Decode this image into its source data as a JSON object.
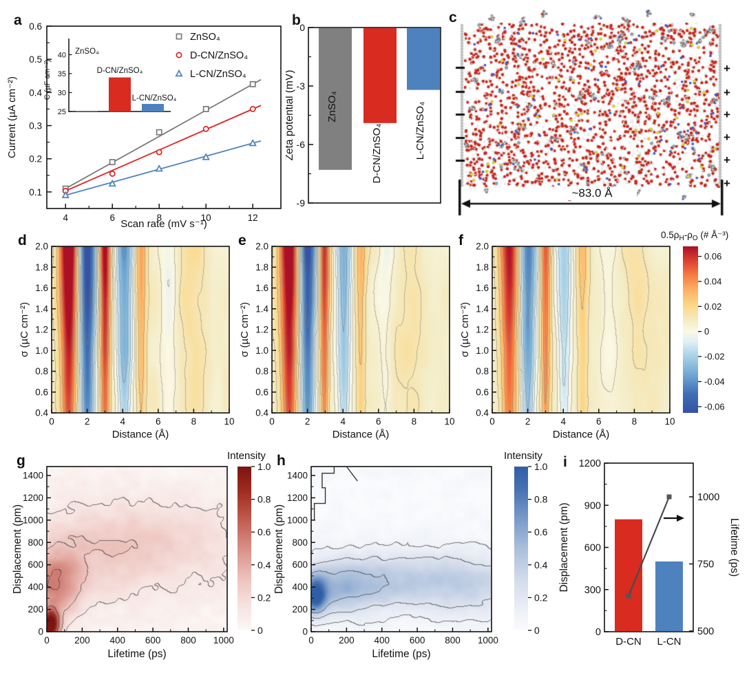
{
  "figure": {
    "background": "#ffffff"
  },
  "colormaps": {
    "rdylbu": [
      [
        -0.065,
        "#3552a3"
      ],
      [
        -0.05,
        "#3f6db5"
      ],
      [
        -0.035,
        "#6ea6d2"
      ],
      [
        -0.02,
        "#a8d0e6"
      ],
      [
        -0.008,
        "#dff0f6"
      ],
      [
        0.0,
        "#fbf8e4"
      ],
      [
        0.008,
        "#f4edc8"
      ],
      [
        0.02,
        "#fbd98c"
      ],
      [
        0.033,
        "#fdb164"
      ],
      [
        0.045,
        "#f67c42"
      ],
      [
        0.055,
        "#e24731"
      ],
      [
        0.068,
        "#aa1026"
      ]
    ],
    "reds": [
      [
        0,
        "#fcf8f6"
      ],
      [
        0.15,
        "#f6e3e0"
      ],
      [
        0.3,
        "#eec6c1"
      ],
      [
        0.5,
        "#d99087"
      ],
      [
        0.7,
        "#bd5448"
      ],
      [
        0.85,
        "#a02c20"
      ],
      [
        1,
        "#7e1310"
      ]
    ],
    "blues": [
      [
        0,
        "#fafbfd"
      ],
      [
        0.15,
        "#e9edf5"
      ],
      [
        0.3,
        "#d4dceb"
      ],
      [
        0.5,
        "#aabfdb"
      ],
      [
        0.7,
        "#7396c7"
      ],
      [
        0.85,
        "#4a74b2"
      ],
      [
        1,
        "#2f5ea6"
      ]
    ]
  },
  "chart_data": [
    {
      "panel": "a",
      "label": "a",
      "type": "scatter",
      "xlabel": "Scan rate (mV s⁻¹)",
      "ylabel": "Current (µA cm⁻²)",
      "xlim": [
        3.2,
        13.2
      ],
      "ylim": [
        0.05,
        0.6
      ],
      "xticks": [
        4,
        6,
        8,
        10,
        12
      ],
      "yticks": [
        0.1,
        0.2,
        0.3,
        0.4,
        0.5,
        0.6
      ],
      "x": [
        4,
        6,
        8,
        10,
        12
      ],
      "series": [
        {
          "name": "ZnSO₄",
          "marker": "square",
          "color": "#7a7a7a",
          "values": [
            0.11,
            0.19,
            0.28,
            0.35,
            0.425
          ]
        },
        {
          "name": "D-CN/ZnSO₄",
          "marker": "circle",
          "color": "#df2120",
          "values": [
            0.103,
            0.155,
            0.22,
            0.29,
            0.35
          ]
        },
        {
          "name": "L-CN/ZnSO₄",
          "marker": "triangle",
          "color": "#4d82bf",
          "values": [
            0.09,
            0.125,
            0.17,
            0.205,
            0.247
          ]
        }
      ],
      "inset": {
        "ylabel": "C (µF cm⁻²)",
        "ylim": [
          24.5,
          43
        ],
        "yticks": [
          25,
          30,
          35,
          40
        ],
        "bars": [
          {
            "label": "ZnSO₄",
            "value": 24.8,
            "color": "#7a7a7a"
          },
          {
            "label": "D-CN/ZnSO₄",
            "value": 34,
            "color": "#d92b20"
          },
          {
            "label": "L-CN/ZnSO₄",
            "value": 27,
            "color": "#4d82bf"
          }
        ]
      }
    },
    {
      "panel": "b",
      "label": "b",
      "type": "bar",
      "ylabel": "Zeta potential (mV)",
      "ylim": [
        -9,
        0
      ],
      "yticks": [
        0,
        -3,
        -6,
        -9
      ],
      "bars": [
        {
          "label": "ZnSO₄",
          "value": -7.3,
          "color": "#808080"
        },
        {
          "label": "D-CN/ZnSO₄",
          "value": -4.9,
          "color": "#d92b20"
        },
        {
          "label": "L-CN/ZnSO₄",
          "value": -3.2,
          "color": "#4d82bf"
        }
      ]
    },
    {
      "panel": "c",
      "label": "c",
      "type": "md-snapshot",
      "width_annotation": "~83.0 Å",
      "left_electrode_charges": [
        "−",
        "−",
        "−",
        "−",
        "−"
      ],
      "right_electrode_charges": [
        "+",
        "+",
        "+",
        "+",
        "+",
        "+"
      ],
      "atom_colors": {
        "oxygen": "#c62a1d",
        "hydrogen": "#f1f1f1",
        "carbon": "#8a8a8a",
        "nitrogen": "#3c5cd7",
        "sulfur": "#e3d71c",
        "zinc": "#93a3b5"
      }
    },
    {
      "panel": "d",
      "label": "d",
      "type": "heatmap",
      "xlabel": "Distance (Å)",
      "ylabel": "σ (µC cm⁻²)",
      "xlim": [
        0,
        10
      ],
      "ylim": [
        0.4,
        2.0
      ],
      "xticks": [
        0,
        2,
        4,
        6,
        8,
        10
      ],
      "yticks": [
        2.0,
        1.8,
        1.6,
        1.4,
        1.2,
        1.0,
        0.8,
        0.6,
        0.4
      ],
      "base": 0.008,
      "noise": 0.0045,
      "bands": [
        {
          "c": 0.95,
          "w": 0.55,
          "a": 0.078
        },
        {
          "c": 2.0,
          "w": 0.5,
          "a": -0.08
        },
        {
          "c": 3.0,
          "w": 0.33,
          "a": 0.065
        },
        {
          "c": 4.1,
          "w": 0.5,
          "a": -0.048
        },
        {
          "c": 5.05,
          "w": 0.3,
          "a": 0.028
        },
        {
          "c": 6.6,
          "w": 0.5,
          "a": -0.012
        },
        {
          "c": 7.9,
          "w": 0.9,
          "a": 0.008
        },
        {
          "c": 9.3,
          "w": 0.6,
          "a": -0.004
        }
      ],
      "levels": [
        -0.052,
        -0.038,
        -0.024,
        -0.012,
        -0.004,
        0.004,
        0.012,
        0.024,
        0.038,
        0.052
      ],
      "colorbar": {
        "title_parts": {
          "p1": "0.5ρ",
          "s1": "H",
          "p2": "-ρ",
          "s2": "O",
          "p3": " (# Å⁻³)"
        },
        "ticks": [
          0.06,
          0.04,
          0.02,
          0,
          -0.02,
          -0.04,
          -0.06
        ],
        "range": [
          -0.06,
          0.06
        ]
      }
    },
    {
      "panel": "e",
      "label": "e",
      "type": "heatmap",
      "xlabel": "Distance (Å)",
      "ylabel": "σ (µC cm⁻²)",
      "xlim": [
        0,
        10
      ],
      "ylim": [
        0.4,
        2.0
      ],
      "xticks": [
        0,
        2,
        4,
        6,
        8,
        10
      ],
      "yticks": [
        2.0,
        1.8,
        1.6,
        1.4,
        1.2,
        1.0,
        0.8,
        0.6,
        0.4
      ],
      "base": 0.008,
      "noise": 0.0045,
      "bands": [
        {
          "c": 0.95,
          "w": 0.55,
          "a": 0.075
        },
        {
          "c": 2.0,
          "w": 0.48,
          "a": -0.075
        },
        {
          "c": 2.95,
          "w": 0.3,
          "a": 0.055
        },
        {
          "c": 4.05,
          "w": 0.45,
          "a": -0.042
        },
        {
          "c": 5.0,
          "w": 0.3,
          "a": 0.024
        },
        {
          "c": 6.4,
          "w": 0.5,
          "a": -0.01
        },
        {
          "c": 7.8,
          "w": 0.9,
          "a": 0.007
        },
        {
          "c": 9.2,
          "w": 0.6,
          "a": -0.004
        }
      ],
      "levels": [
        -0.052,
        -0.038,
        -0.024,
        -0.012,
        -0.004,
        0.004,
        0.012,
        0.024,
        0.038,
        0.052
      ]
    },
    {
      "panel": "f",
      "label": "f",
      "type": "heatmap",
      "xlabel": "Distance (Å)",
      "ylabel": "σ (µC cm⁻²)",
      "xlim": [
        0,
        10
      ],
      "ylim": [
        0.4,
        2.0
      ],
      "xticks": [
        0,
        2,
        4,
        6,
        8,
        10
      ],
      "yticks": [
        2.0,
        1.8,
        1.6,
        1.4,
        1.2,
        1.0,
        0.8,
        0.6,
        0.4
      ],
      "base": 0.008,
      "noise": 0.0042,
      "bands": [
        {
          "c": 0.95,
          "w": 0.55,
          "a": 0.06
        },
        {
          "c": 2.0,
          "w": 0.48,
          "a": -0.055
        },
        {
          "c": 3.0,
          "w": 0.3,
          "a": 0.046
        },
        {
          "c": 4.05,
          "w": 0.45,
          "a": -0.03
        },
        {
          "c": 5.1,
          "w": 0.35,
          "a": 0.02
        },
        {
          "c": 6.6,
          "w": 0.6,
          "a": -0.008
        },
        {
          "c": 8.0,
          "w": 1.0,
          "a": 0.006
        }
      ],
      "levels": [
        -0.052,
        -0.038,
        -0.024,
        -0.012,
        -0.004,
        0.004,
        0.012,
        0.024,
        0.038,
        0.052
      ]
    },
    {
      "panel": "g",
      "label": "g",
      "type": "heatmap",
      "xlabel": "Lifetime (ps)",
      "ylabel": "Displacement (pm)",
      "xlim": [
        0,
        1020
      ],
      "ylim": [
        0,
        1480
      ],
      "xticks": [
        0,
        200,
        400,
        600,
        800,
        1000
      ],
      "yticks": [
        0,
        200,
        400,
        600,
        800,
        1000,
        1200,
        1400
      ],
      "cmap": "reds",
      "base": 0.03,
      "noise": 0.05,
      "blobs": [
        {
          "x": 20,
          "y": 60,
          "sx": 50,
          "sy": 130,
          "a": 1.05
        },
        {
          "x": 40,
          "y": 420,
          "sx": 150,
          "sy": 300,
          "a": 0.45
        },
        {
          "x": 260,
          "y": 720,
          "sx": 420,
          "sy": 420,
          "a": 0.18
        },
        {
          "x": 700,
          "y": 800,
          "sx": 500,
          "sy": 400,
          "a": 0.15
        }
      ],
      "levels": [
        0.12,
        0.3,
        0.55,
        0.8
      ],
      "colorbar": {
        "title": "Intensity",
        "ticks": [
          1.0,
          0.8,
          0.6,
          0.4,
          0.2,
          0
        ]
      }
    },
    {
      "panel": "h",
      "label": "h",
      "type": "heatmap",
      "xlabel": "Lifetime (ps)",
      "ylabel": "Displacement (pm)",
      "xlim": [
        0,
        1020
      ],
      "ylim": [
        0,
        1480
      ],
      "xticks": [
        0,
        200,
        400,
        600,
        800,
        1000
      ],
      "yticks": [
        0,
        200,
        400,
        600,
        800,
        1000,
        1200,
        1400
      ],
      "cmap": "blues",
      "base": 0.02,
      "noise": 0.05,
      "blobs": [
        {
          "x": 25,
          "y": 320,
          "sx": 60,
          "sy": 150,
          "a": 0.8
        },
        {
          "x": 150,
          "y": 380,
          "sx": 280,
          "sy": 240,
          "a": 0.35
        },
        {
          "x": 500,
          "y": 470,
          "sx": 520,
          "sy": 250,
          "a": 0.3
        },
        {
          "x": 950,
          "y": 400,
          "sx": 350,
          "sy": 280,
          "a": 0.22
        }
      ],
      "levels": [
        0.1,
        0.24,
        0.45
      ],
      "artifact_contours": [
        [
          [
            18,
            1000
          ],
          [
            18,
            1150
          ],
          [
            80,
            1150
          ],
          [
            80,
            1290
          ],
          [
            62,
            1290
          ],
          [
            62,
            1420
          ],
          [
            130,
            1420
          ],
          [
            130,
            1480
          ]
        ],
        [
          [
            200,
            1480
          ],
          [
            262,
            1350
          ]
        ]
      ],
      "colorbar": {
        "title": "Intensity",
        "ticks": [
          1.0,
          0.8,
          0.6,
          0.4,
          0.2,
          0
        ]
      }
    },
    {
      "panel": "i",
      "label": "i",
      "type": "bar-line",
      "categories": [
        "D-CN",
        "L-CN"
      ],
      "ylabel_left": "Displacement (pm)",
      "ylabel_right": "Lifetime (ps)",
      "ylim_left": [
        0,
        1200
      ],
      "yticks_left": [
        0,
        300,
        600,
        900,
        1200
      ],
      "ylim_right": [
        500,
        1125
      ],
      "yticks_right": [
        500,
        750,
        1000
      ],
      "bars": [
        {
          "label": "D-CN",
          "value": 800,
          "color": "#d92b20"
        },
        {
          "label": "L-CN",
          "value": 500,
          "color": "#4d82bf"
        }
      ],
      "line": {
        "name": "Lifetime",
        "values": [
          630,
          1000
        ],
        "color": "#4a4a4a",
        "marker": "square"
      }
    }
  ]
}
